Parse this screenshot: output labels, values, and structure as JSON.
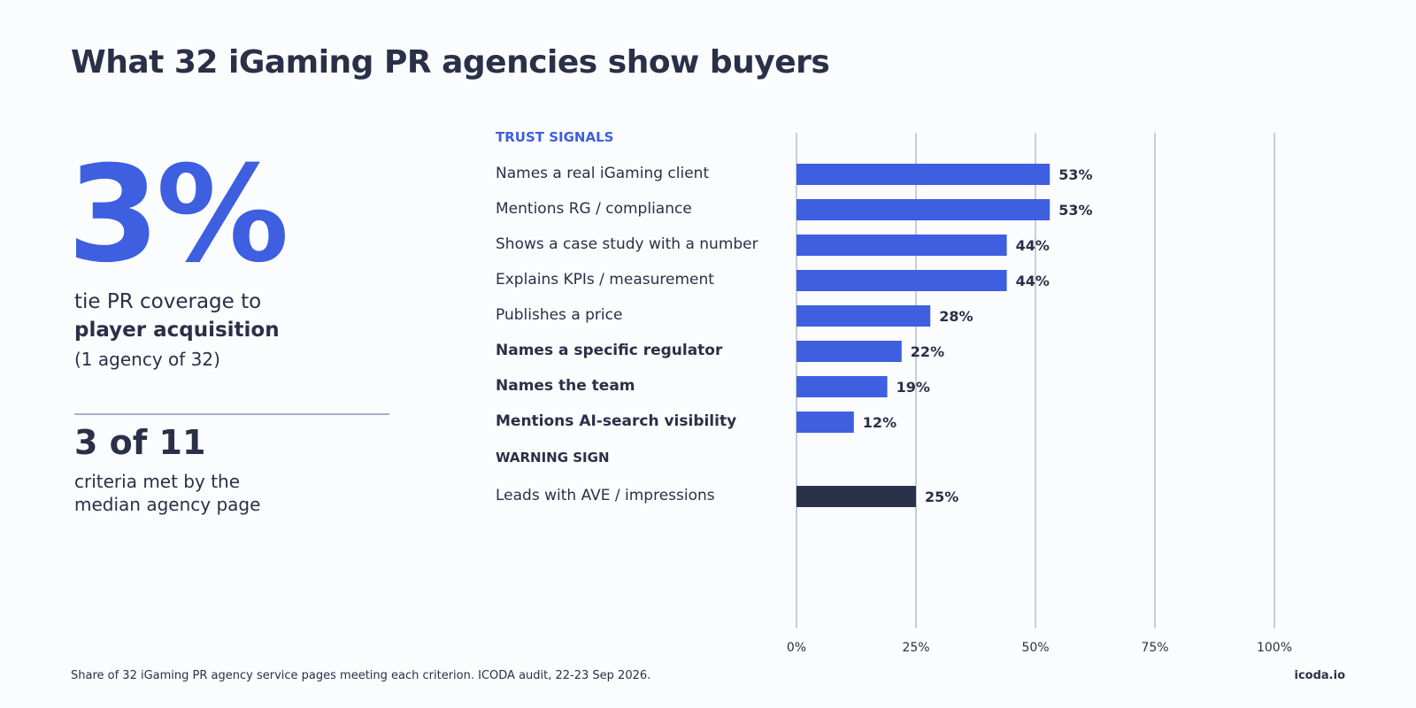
{
  "title": "What 32 iGaming PR agencies show buyers",
  "headline_stat": {
    "value": "3%",
    "line1": "tie PR coverage to",
    "line2": "player acquisition",
    "line3": "(1 agency of 32)"
  },
  "secondary_stat": {
    "value": "3 of 11",
    "line1": "criteria met by the",
    "line2": "median agency page"
  },
  "chart_data": {
    "type": "bar",
    "orientation": "horizontal",
    "xlim": [
      0,
      100
    ],
    "xticks": [
      "0%",
      "25%",
      "50%",
      "75%",
      "100%"
    ],
    "grid": true,
    "groups": [
      {
        "label": "TRUST SIGNALS",
        "color": "#3d5fe0",
        "items": [
          {
            "label": "Names a real iGaming client",
            "value": 53,
            "bold": false
          },
          {
            "label": "Mentions RG / compliance",
            "value": 53,
            "bold": false
          },
          {
            "label": "Shows a case study with a number",
            "value": 44,
            "bold": false
          },
          {
            "label": "Explains KPIs / measurement",
            "value": 44,
            "bold": false
          },
          {
            "label": "Publishes a price",
            "value": 28,
            "bold": false
          },
          {
            "label": "Names a specific regulator",
            "value": 22,
            "bold": true
          },
          {
            "label": "Names the team",
            "value": 19,
            "bold": true
          },
          {
            "label": "Mentions AI-search visibility",
            "value": 12,
            "bold": true
          }
        ]
      },
      {
        "label": "WARNING SIGN",
        "color": "#2a3249",
        "items": [
          {
            "label": "Leads with AVE / impressions",
            "value": 25,
            "bold": false
          }
        ]
      }
    ],
    "value_suffix": "%"
  },
  "footer": {
    "note": "Share of 32 iGaming PR agency service pages meeting each criterion. ICODA audit, 22-23 Sep 2026.",
    "brand": "icoda.io"
  }
}
